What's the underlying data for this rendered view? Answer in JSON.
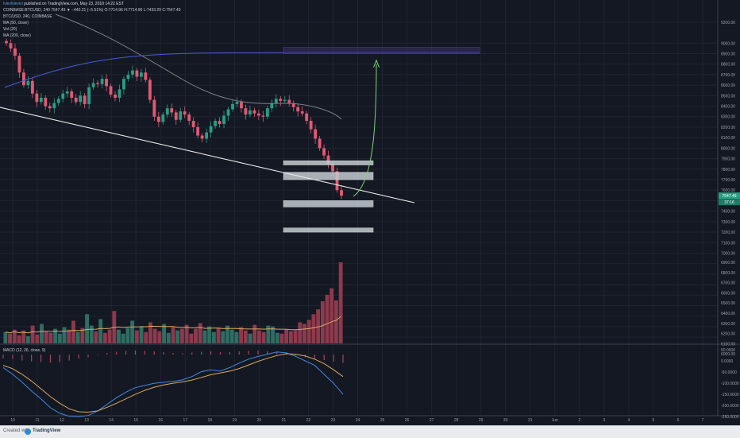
{
  "header": {
    "author": "lvlevlvlevlvl",
    "published": "published on TradingView.com, May 23, 2018 14:22 EST",
    "symbol_line": "COINBASE:BTCUSD, 240  7547.49  ▼  −440.21 (−5.51%)  O:7714.96  H:7714.96  L:7433.29  C:7547.49",
    "legend": [
      "BTC/USD, 240, COINBASE",
      "MA (50, close)",
      "Vol (20)",
      "MA (200, close)"
    ]
  },
  "footer": {
    "created_with": "Created with",
    "brand": "TradingView"
  },
  "colors": {
    "bg": "#141823",
    "up": "#2a9d83",
    "down": "#e05a72",
    "ma50": "#7b7f86",
    "ma200": "#4a5bd8",
    "box": "#c4cbcf",
    "trend": "#e8e8e8",
    "arrow": "#7fd37a",
    "signal": "#d9a860",
    "macd": "#3f8ae0"
  },
  "chart_data": [
    {
      "type": "candlestick",
      "title": "BTC/USD, 240, COINBASE",
      "x_ticks": [
        "10",
        "11",
        "12",
        "13",
        "14",
        "15",
        "16",
        "17",
        "18",
        "19",
        "20",
        "21",
        "22",
        "23",
        "24",
        "25",
        "26",
        "27",
        "28",
        "29",
        "30",
        "31",
        "Jun",
        "2",
        "3",
        "4",
        "5",
        "6",
        "7"
      ],
      "y_ticks": [
        9200,
        9000,
        8900,
        8800,
        8700,
        8600,
        8500,
        8400,
        8300,
        8200,
        8100,
        8000,
        7900,
        7800,
        7700,
        7600,
        7500,
        7400,
        7300,
        7200,
        7100,
        7000,
        6900,
        6800,
        6700,
        6600,
        6500,
        6400,
        6300,
        6200,
        6100,
        6000
      ],
      "ylim": [
        6000,
        9200
      ],
      "last_price": 7547.49,
      "last_price_label": "7547.49",
      "countdown_label": "37:16",
      "close_series": [
        9000,
        8950,
        8880,
        8720,
        8600,
        8640,
        8520,
        8440,
        8480,
        8400,
        8380,
        8430,
        8470,
        8520,
        8540,
        8480,
        8440,
        8500,
        8420,
        8580,
        8620,
        8610,
        8660,
        8590,
        8510,
        8480,
        8560,
        8660,
        8700,
        8740,
        8680,
        8720,
        8650,
        8460,
        8300,
        8250,
        8320,
        8380,
        8340,
        8270,
        8350,
        8320,
        8260,
        8200,
        8120,
        8090,
        8150,
        8210,
        8260,
        8230,
        8310,
        8370,
        8420,
        8440,
        8380,
        8320,
        8360,
        8330,
        8310,
        8300,
        8380,
        8430,
        8470,
        8450,
        8460,
        8430,
        8390,
        8350,
        8330,
        8260,
        8180,
        8090,
        8000,
        7930,
        7850,
        7780,
        7600,
        7547
      ],
      "zones": [
        {
          "low": 7840,
          "high": 7880
        },
        {
          "low": 7700,
          "high": 7770
        },
        {
          "low": 7440,
          "high": 7500
        },
        {
          "low": 7200,
          "high": 7240
        },
        {
          "low": 8900,
          "high": 8960
        }
      ],
      "projection_target": 8860
    },
    {
      "type": "bar",
      "title": "Vol (20)",
      "y_ticks": [
        6900,
        6800,
        6700,
        6600,
        6500,
        6400,
        6300,
        6200,
        6100,
        6000
      ],
      "values": [
        14,
        12,
        17,
        10,
        16,
        9,
        22,
        11,
        24,
        15,
        13,
        18,
        12,
        20,
        17,
        28,
        14,
        19,
        36,
        22,
        15,
        30,
        13,
        17,
        40,
        17,
        12,
        19,
        28,
        16,
        21,
        14,
        26,
        18,
        15,
        24,
        13,
        20,
        16,
        18,
        23,
        12,
        18,
        25,
        16,
        21,
        14,
        19,
        15,
        22,
        17,
        14,
        20,
        16,
        12,
        23,
        16,
        14,
        22,
        21,
        13,
        12,
        17,
        15,
        16,
        26,
        24,
        29,
        36,
        42,
        52,
        60,
        68,
        53,
        100
      ]
    },
    {
      "type": "line",
      "title": "MACD (12, 26, close, 9)",
      "y_ticks": [
        "50.0000",
        "0.0000",
        "-50.0000",
        "-100.0000",
        "-150.0000",
        "-200.0000",
        "-250.0000"
      ],
      "ylim": [
        -260,
        60
      ],
      "series": [
        {
          "values": [
            -30,
            -60,
            -95,
            -135,
            -170,
            -210,
            -235,
            -248,
            -250,
            -245,
            -225,
            -195,
            -165,
            -140,
            -120,
            -110,
            -100,
            -96,
            -92,
            -85,
            -70,
            -48,
            -40,
            -46,
            -30,
            -10,
            8,
            20,
            30,
            40,
            36,
            20,
            0,
            -20,
            -60,
            -100,
            -150
          ]
        },
        {
          "values": [
            -20,
            -35,
            -60,
            -90,
            -125,
            -160,
            -190,
            -215,
            -228,
            -230,
            -224,
            -208,
            -190,
            -170,
            -150,
            -132,
            -118,
            -108,
            -100,
            -94,
            -86,
            -74,
            -62,
            -54,
            -46,
            -34,
            -18,
            -2,
            12,
            24,
            32,
            30,
            22,
            8,
            -12,
            -40,
            -70
          ]
        }
      ],
      "hist_values": [
        -20,
        -22,
        -30,
        -35,
        -38,
        -40,
        -38,
        -30,
        -20,
        -14,
        -4,
        8,
        14,
        18,
        20,
        18,
        16,
        12,
        8,
        6,
        10,
        14,
        16,
        12,
        12,
        16,
        18,
        20,
        18,
        14,
        6,
        -4,
        -14,
        -22,
        -28,
        -36,
        -42
      ]
    }
  ]
}
